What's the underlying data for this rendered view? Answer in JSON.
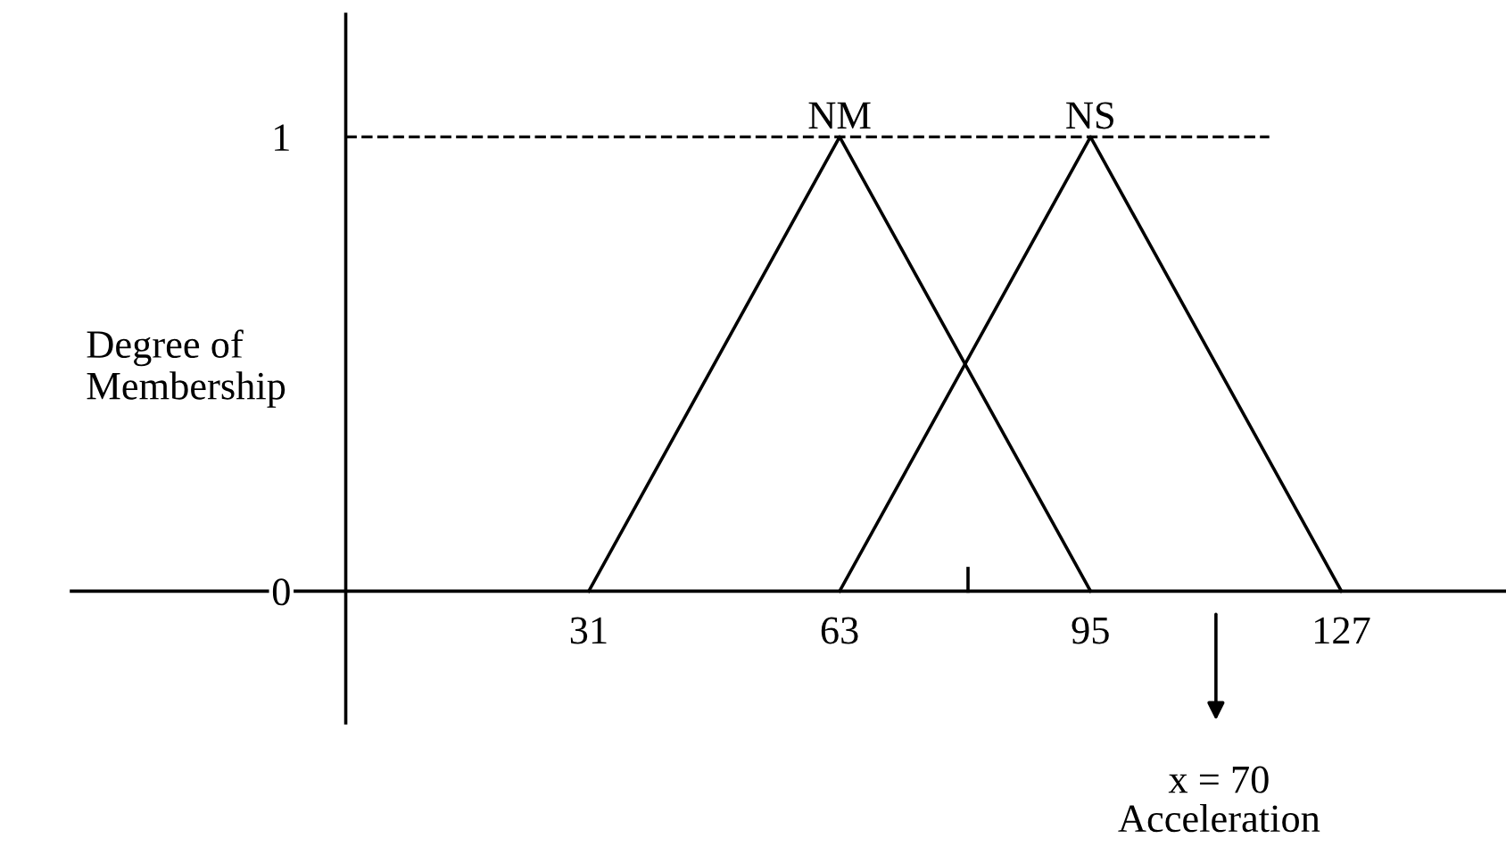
{
  "chart_data": {
    "type": "line",
    "xlabel": "Acceleration",
    "ylabel": "Degree of\nMembership",
    "xlim": [
      -35,
      148
    ],
    "ylim": [
      -0.29,
      1.27
    ],
    "xticks": [
      31,
      63,
      95,
      127
    ],
    "yticks": [
      0,
      1
    ],
    "series": [
      {
        "name": "NM",
        "color": "#000000",
        "x": [
          31,
          63,
          95
        ],
        "values": [
          0,
          1,
          0
        ]
      },
      {
        "name": "NS",
        "color": "#000000",
        "x": [
          63,
          95,
          127
        ],
        "values": [
          0,
          1,
          0
        ]
      }
    ],
    "ref_lines": [
      {
        "axis": "y",
        "value": 1,
        "line_style": "dashed",
        "color": "#000000"
      }
    ],
    "annotations": [
      "x = 70"
    ],
    "line_style": "solid"
  }
}
